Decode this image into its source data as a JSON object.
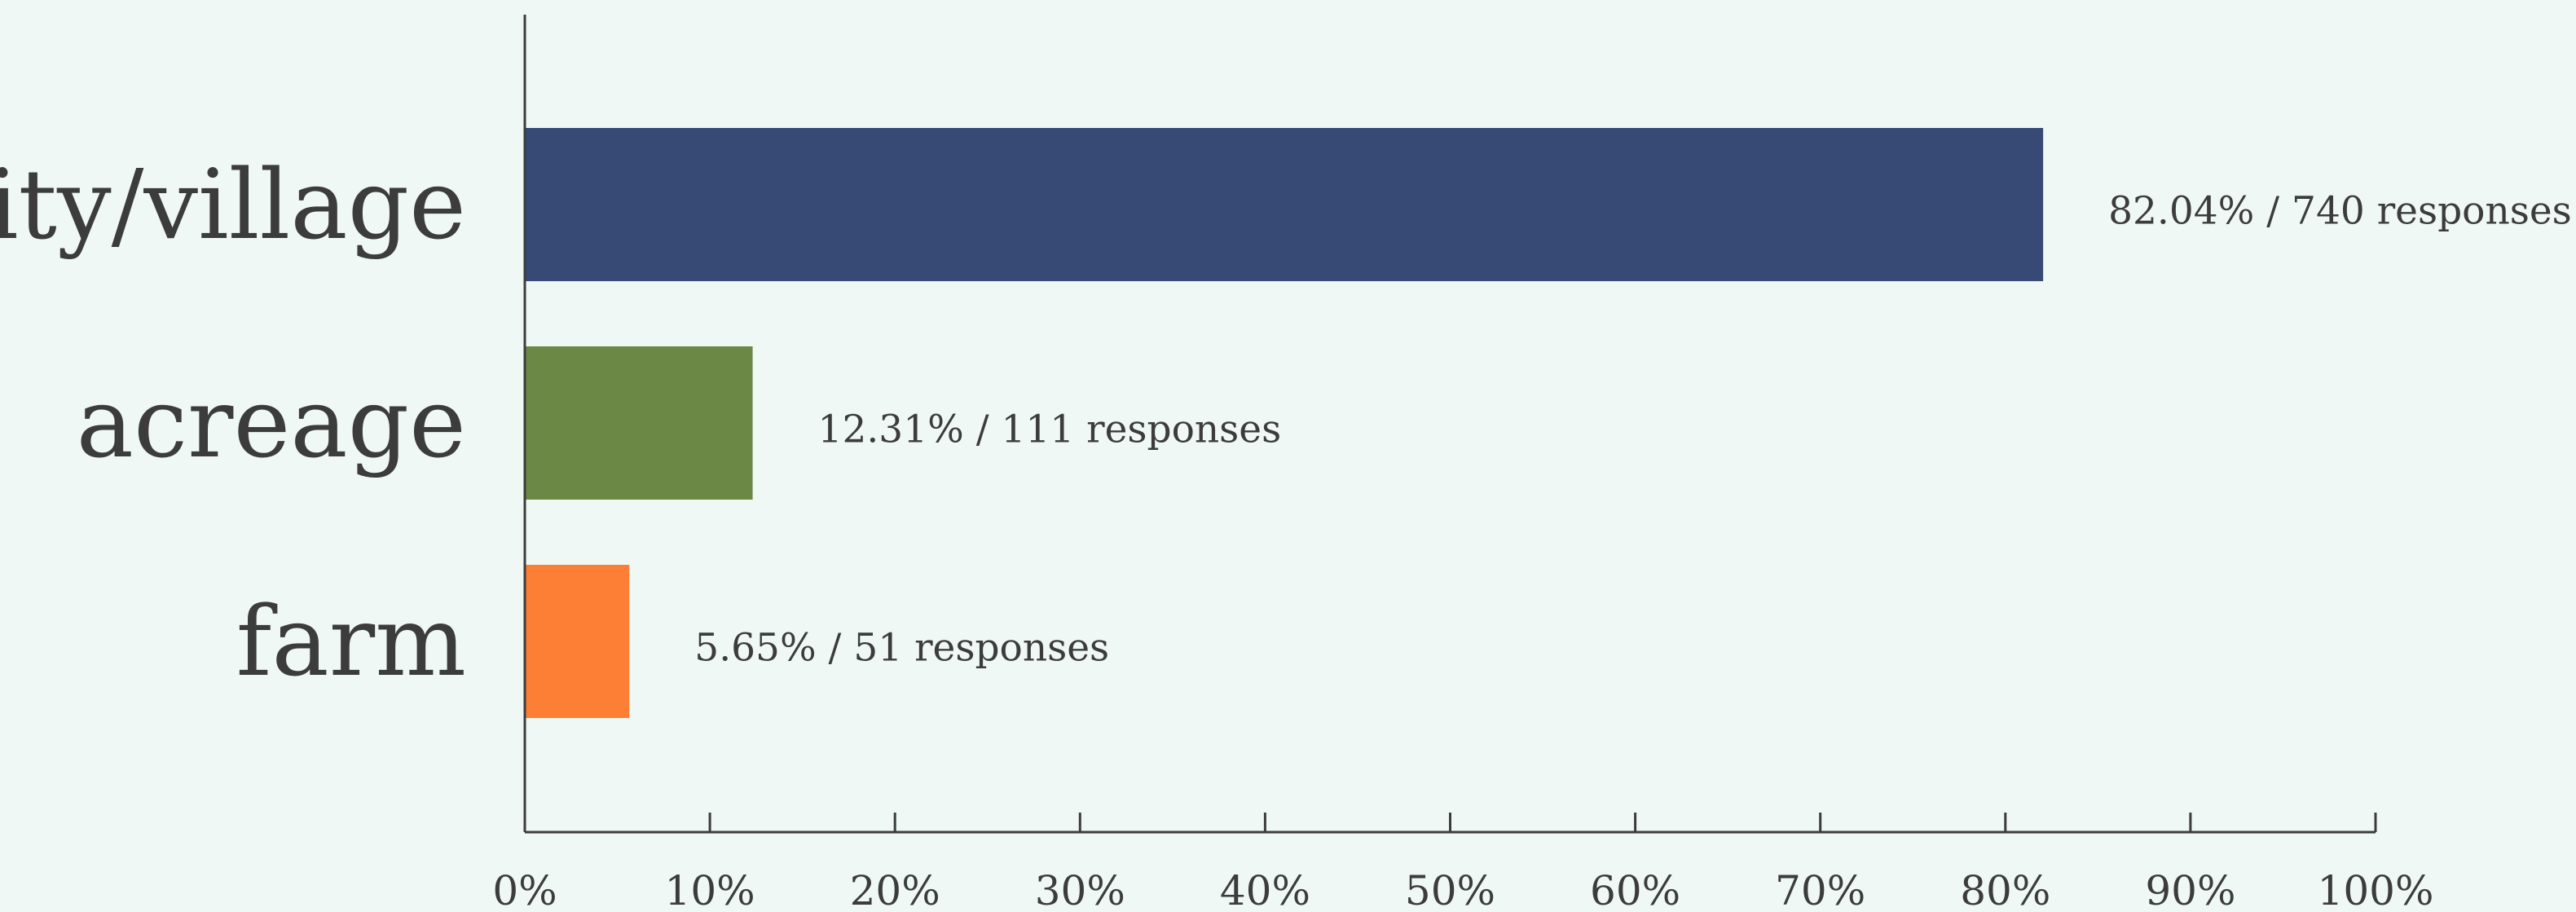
{
  "chart_data": {
    "type": "bar",
    "orientation": "horizontal",
    "categories": [
      "city/village",
      "acreage",
      "farm"
    ],
    "values": [
      82.04,
      12.31,
      5.65
    ],
    "value_unit": "%",
    "data_labels": [
      "82.04% / 740 responses",
      "12.31% / 111 responses",
      "5.65% / 51 responses"
    ],
    "colors": [
      "#364a75",
      "#6b8845",
      "#fd7f35"
    ],
    "xlim": [
      0,
      100
    ],
    "x_ticks": [
      "0%",
      "10%",
      "20%",
      "30%",
      "40%",
      "50%",
      "60%",
      "70%",
      "80%",
      "90%",
      "100%"
    ],
    "grid": false,
    "legend": "none"
  }
}
